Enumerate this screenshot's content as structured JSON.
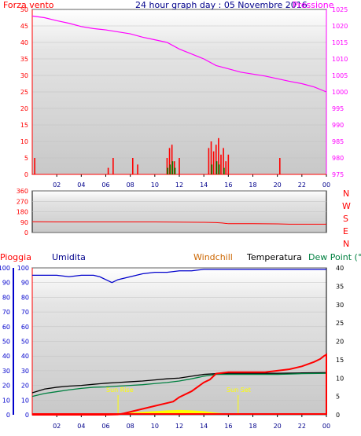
{
  "header": {
    "left_label": "Forza vento",
    "title": "24 hour graph day : 05 Novembre 2016",
    "right_label": "Pressione"
  },
  "bottom_header": {
    "pioggia": "Pioggia",
    "umidita": "Umidita",
    "windchill": "Windchill",
    "temperatura": "Temperatura",
    "dewpoint": "Dew Point (°C"
  },
  "annotations": {
    "sunrise": "Sun Rise",
    "sunset": "Sun Set"
  },
  "colors": {
    "panel_bg": "#e0e0e0",
    "wind_axis": "#ff0000",
    "pressure": "#ff00ff",
    "pressure_axis": "#ff00ff",
    "winddir": "#ff0000",
    "rain": "#ff0000",
    "humidity": "#0000cc",
    "temperature": "#000000",
    "dewpoint": "#008040",
    "windchill": "#cc6600",
    "sun": "#ffff00",
    "gust": "#ff0000",
    "wind_avg": "#008000",
    "wind_min": "#0000ff"
  },
  "chart_data": [
    {
      "type": "line",
      "name": "wind-pressure",
      "x_ticks": [
        "02",
        "04",
        "06",
        "08",
        "10",
        "12",
        "14",
        "16",
        "18",
        "20",
        "22",
        "00"
      ],
      "y_left_ticks": [
        "0",
        "5",
        "10",
        "15",
        "20",
        "25",
        "30",
        "35",
        "40",
        "45",
        "50"
      ],
      "ylim_left": [
        0,
        50
      ],
      "y_right_ticks": [
        "975",
        "980",
        "985",
        "990",
        "995",
        "1000",
        "1005",
        "1010",
        "1015",
        "1020",
        "1025"
      ],
      "ylim_right": [
        975,
        1025
      ],
      "xlim_hours": [
        0,
        24
      ],
      "series": [
        {
          "name": "Pressione",
          "axis": "right",
          "x": [
            0,
            1,
            2,
            3,
            4,
            5,
            6,
            7,
            8,
            9,
            10,
            11,
            12,
            13,
            14,
            15,
            16,
            17,
            18,
            19,
            20,
            21,
            22,
            23,
            24
          ],
          "y": [
            1023,
            1022.5,
            1021.6,
            1020.8,
            1019.8,
            1019.2,
            1018.8,
            1018.2,
            1017.6,
            1016.6,
            1015.8,
            1015,
            1013,
            1011.5,
            1010,
            1008,
            1007,
            1006,
            1005.4,
            1004.8,
            1004,
            1003.2,
            1002.5,
            1001.5,
            1000
          ]
        },
        {
          "name": "gust",
          "axis": "left",
          "x": [
            0.2,
            6.2,
            6.6,
            8.2,
            8.6,
            11.0,
            11.2,
            11.4,
            11.6,
            12.0,
            14.4,
            14.6,
            14.8,
            15.0,
            15.2,
            15.4,
            15.6,
            15.8,
            16.0,
            20.2
          ],
          "y": [
            5,
            2,
            5,
            5,
            3,
            5,
            8,
            9,
            4,
            5,
            8,
            10,
            7,
            9,
            11,
            6,
            8,
            4,
            6,
            5
          ]
        },
        {
          "name": "avg",
          "axis": "left",
          "x": [
            11.0,
            11.2,
            11.4,
            11.6,
            14.6,
            15.0,
            15.2,
            15.6
          ],
          "y": [
            2,
            3,
            4,
            2,
            3,
            4,
            3,
            2
          ]
        }
      ]
    },
    {
      "type": "line",
      "name": "wind-direction",
      "y_left_ticks": [
        "0",
        "90",
        "180",
        "270",
        "360"
      ],
      "ylim": [
        0,
        360
      ],
      "y_right_labels": [
        "N",
        "W",
        "S",
        "E",
        "N"
      ],
      "series": [
        {
          "name": "direction",
          "x": [
            0,
            2,
            4,
            6,
            8,
            10,
            12,
            14,
            15,
            15.5,
            16,
            18,
            20,
            21,
            22,
            24
          ],
          "y": [
            93,
            92,
            92,
            92,
            92,
            92,
            90,
            88,
            86,
            82,
            76,
            76,
            75,
            72,
            72,
            72
          ]
        }
      ]
    },
    {
      "type": "line",
      "name": "rain-humidity-temperature",
      "y_left_ticks": [
        "0",
        "10",
        "20",
        "30",
        "40",
        "50",
        "60",
        "70",
        "80",
        "90",
        "100"
      ],
      "ylim_left": [
        0,
        100
      ],
      "y_right_ticks": [
        "0",
        "5",
        "10",
        "15",
        "20",
        "25",
        "30",
        "35",
        "40"
      ],
      "ylim_right": [
        0,
        40
      ],
      "series": [
        {
          "name": "Umidita",
          "axis": "left",
          "x": [
            0,
            1,
            2,
            3,
            4,
            5,
            5.5,
            6,
            6.5,
            7,
            8,
            9,
            10,
            11,
            12,
            13,
            14,
            15,
            16,
            18,
            20,
            22,
            24
          ],
          "y": [
            95,
            95,
            95,
            94,
            95,
            95,
            94,
            92,
            90,
            92,
            94,
            96,
            97,
            97,
            98,
            98,
            99,
            99,
            99,
            99,
            99,
            99,
            99
          ]
        },
        {
          "name": "Temperatura",
          "axis": "right",
          "x": [
            0,
            1,
            2,
            3,
            4,
            5,
            6,
            7,
            8,
            9,
            10,
            11,
            12,
            13,
            14,
            15,
            16,
            18,
            20,
            22,
            24
          ],
          "y": [
            6,
            7,
            7.5,
            7.8,
            8,
            8.3,
            8.6,
            8.8,
            9,
            9.2,
            9.5,
            9.8,
            10,
            10.5,
            11,
            11.2,
            11.3,
            11.3,
            11.3,
            11.4,
            11.5
          ]
        },
        {
          "name": "Dew Point",
          "axis": "right",
          "x": [
            0,
            1,
            2,
            3,
            4,
            5,
            6,
            7,
            8,
            9,
            10,
            11,
            12,
            13,
            14,
            15,
            16,
            18,
            20,
            22,
            24
          ],
          "y": [
            5,
            5.8,
            6.3,
            6.8,
            7.2,
            7.5,
            7.6,
            7.8,
            8,
            8.2,
            8.5,
            8.8,
            9.2,
            9.8,
            10.5,
            11,
            11,
            11,
            11,
            11.2,
            11.3
          ]
        },
        {
          "name": "Pioggia",
          "axis": "left",
          "x": [
            0,
            6,
            7,
            7.5,
            8,
            9,
            10,
            11,
            11.5,
            12,
            13,
            14,
            14.5,
            15,
            16,
            17,
            18,
            19,
            20,
            21,
            22,
            23,
            23.5,
            23.8,
            24
          ],
          "y": [
            0,
            0,
            0.2,
            1,
            2,
            4,
            6,
            8,
            9,
            12,
            16,
            22,
            24,
            28,
            29,
            29,
            29,
            29,
            30,
            31,
            33,
            36,
            38,
            40,
            41
          ]
        },
        {
          "name": "sun",
          "axis": "right",
          "x": [
            0,
            6.8,
            7,
            8,
            9,
            10,
            11,
            12,
            13,
            14,
            15,
            16,
            16.8,
            24
          ],
          "y": [
            0,
            0,
            0.3,
            0.6,
            0.8,
            1,
            1.2,
            1.3,
            1.2,
            1,
            0.6,
            0.3,
            0,
            0
          ]
        }
      ]
    }
  ]
}
